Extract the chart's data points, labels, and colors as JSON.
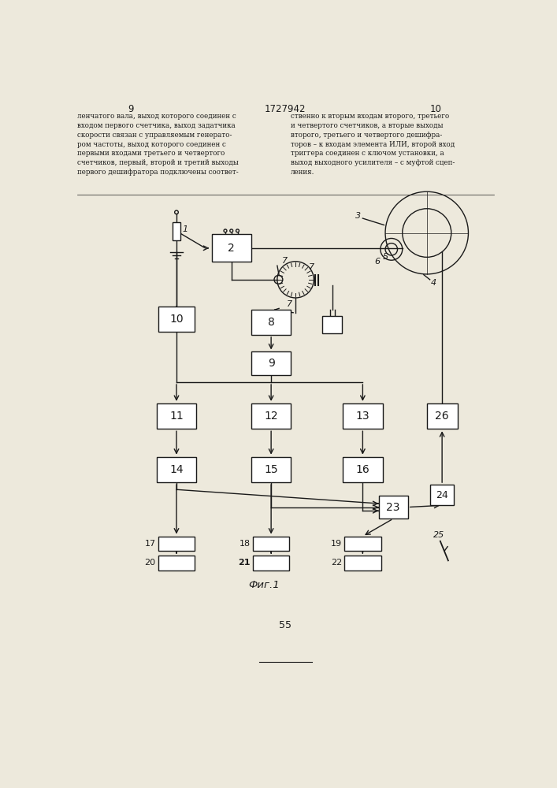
{
  "title_top_left": "9",
  "title_center": "1727942",
  "title_top_right": "10",
  "page_number": "55",
  "fig_caption": "Фиг.1",
  "bg_color": "#ede9dc",
  "line_color": "#1a1a1a",
  "box_color": "#ffffff",
  "text_color": "#1a1a1a",
  "text_body_left": "ленчатого вала, выход которого соединен с\nвходом первого счетчика, выход задатчика\nскорости связан с управляемым генерато-\nром частоты, выход которого соединен с\nпервыми входами третьего и четвертого\nсчетчиков, первый, второй и третий выходы\nпервого дешифратора подключены соответ-",
  "text_body_right": "ственно к вторым входам второго, третьего\nи четвертого счетчиков, а вторые выходы\nвторого, третьего и четвертого дешифра-\nторов – к входам элемента ИЛИ, второй вход\nтриггера соединен с ключом установки, а\nвыход выходного усилителя – с муфтой сцеп-\nления."
}
